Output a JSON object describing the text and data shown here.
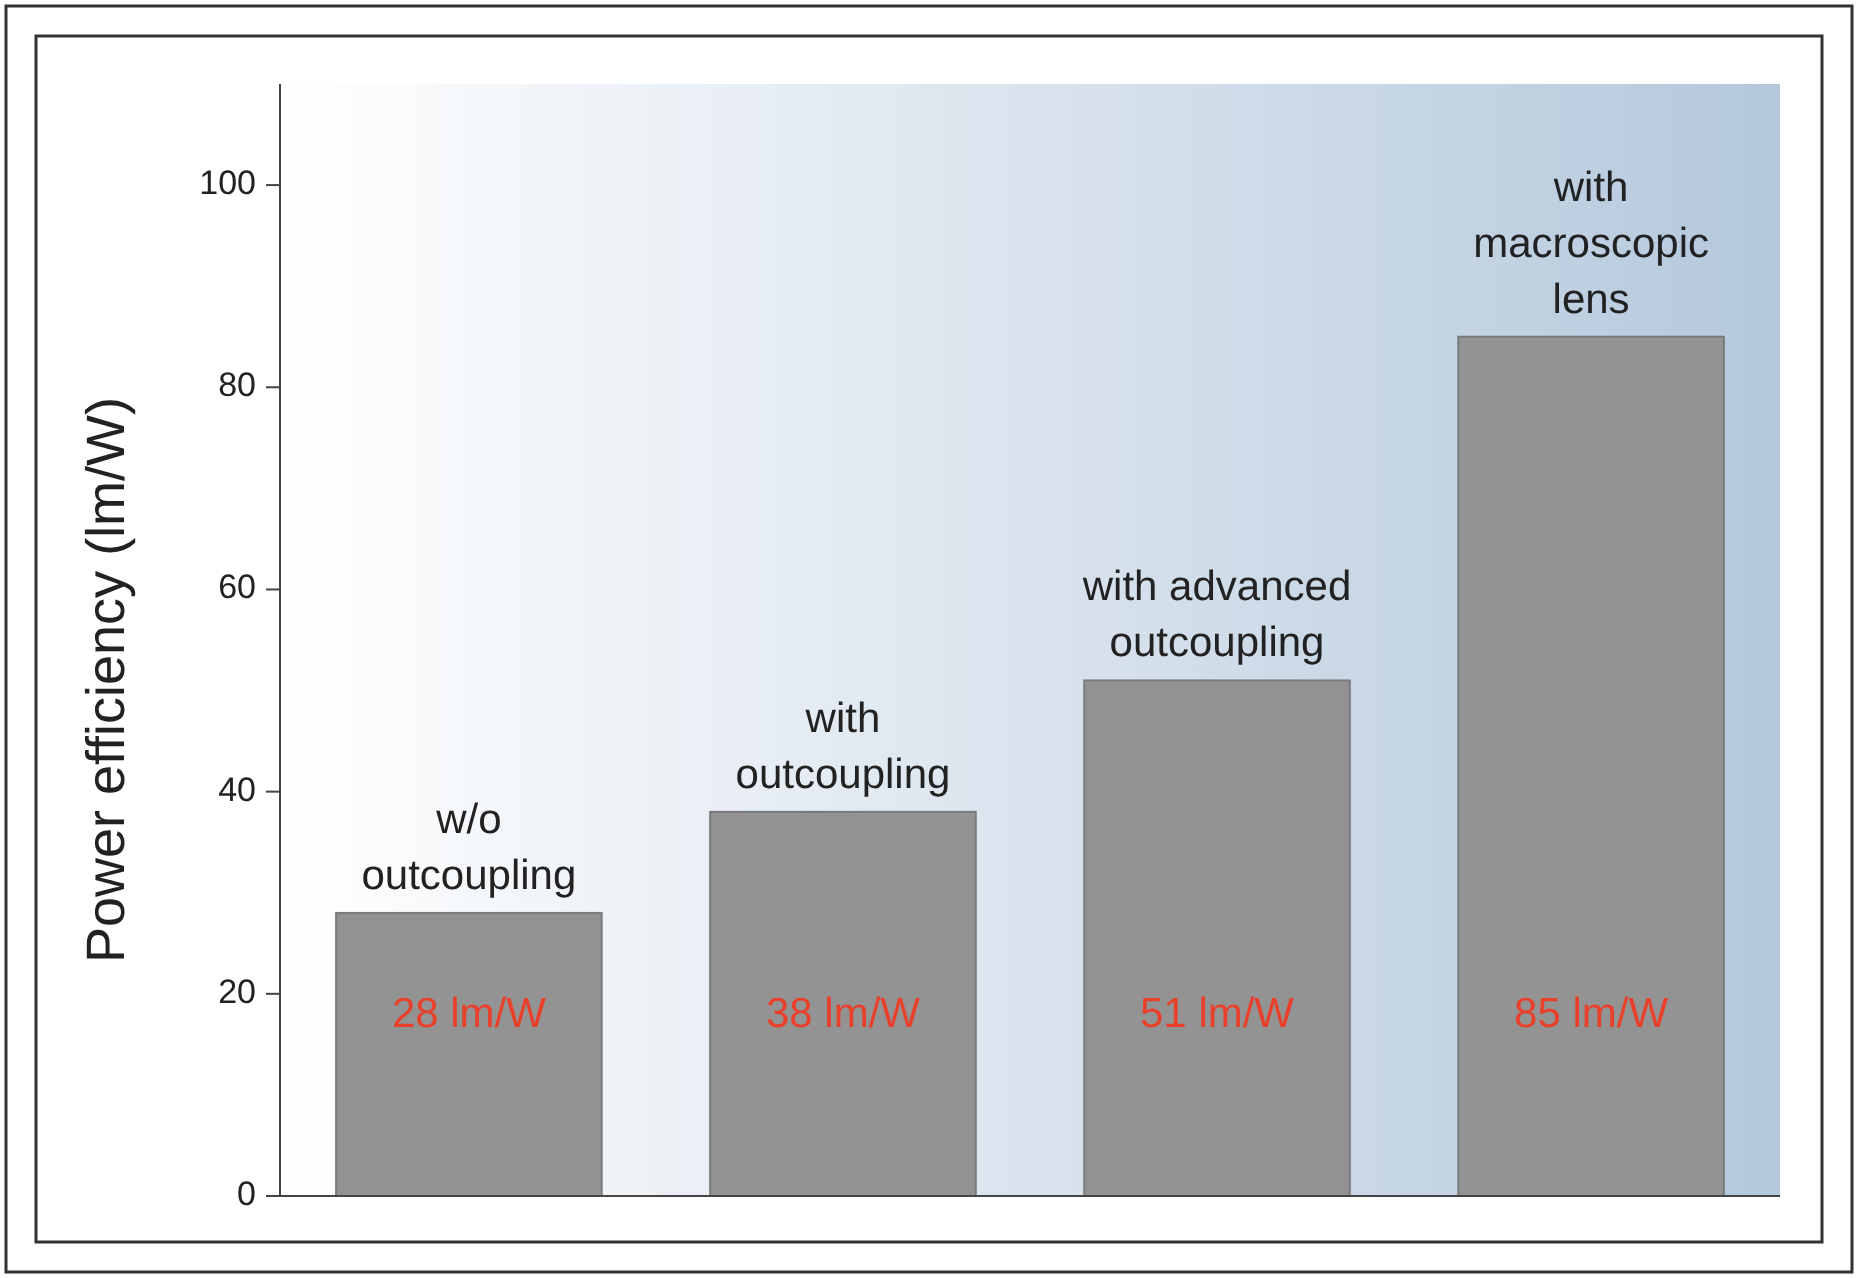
{
  "chart_data": {
    "type": "bar",
    "ylabel": "Power efficiency (lm/W)",
    "categories": [
      "w/o\noutcoupling",
      "with\noutcoupling",
      "with advanced\noutcoupling",
      "with\nmacroscopic\nlens"
    ],
    "values": [
      28,
      38,
      51,
      85
    ],
    "value_labels": [
      "28 lm/W",
      "38 lm/W",
      "51 lm/W",
      "85 lm/W"
    ],
    "color": "#939393",
    "ylim": [
      0,
      110
    ],
    "yticks": [
      0,
      20,
      40,
      60,
      80,
      100
    ]
  }
}
